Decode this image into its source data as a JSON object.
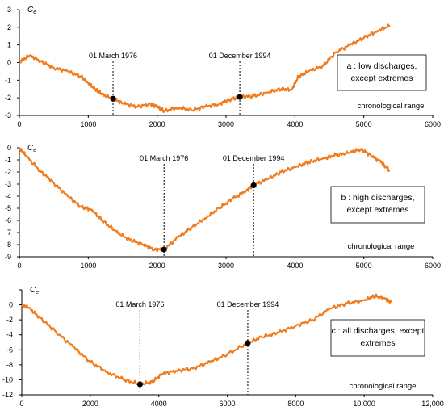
{
  "colors": {
    "series": "#f07c1e",
    "axis": "#000000",
    "marker": "#000000"
  },
  "chart_data": [
    {
      "type": "line",
      "id": "a",
      "ylabel": "C",
      "ylabel_sub": "e",
      "xlabel": "chronological range",
      "legend": [
        "a : low discharges,",
        "except extremes"
      ],
      "xlim": [
        0,
        6000
      ],
      "ylim": [
        -3,
        3
      ],
      "xticks": [
        0,
        1000,
        2000,
        3000,
        4000,
        5000,
        6000
      ],
      "xtick_labels": [
        "0",
        "1000",
        "2000",
        "3000",
        "4000",
        "5000",
        "6000"
      ],
      "yticks": [
        -3,
        -2,
        -1,
        0,
        1,
        2,
        3
      ],
      "ytick_labels": [
        "-3",
        "-2",
        "-1",
        "0",
        "1",
        "2",
        "3"
      ],
      "series": [
        {
          "x": [
            0,
            150,
            300,
            500,
            700,
            900,
            1000,
            1100,
            1200,
            1360,
            1500,
            1700,
            1900,
            2000,
            2100,
            2300,
            2500,
            2700,
            2900,
            3050,
            3200,
            3400,
            3600,
            3800,
            3950,
            4050,
            4200,
            4400,
            4600,
            4800,
            5000,
            5200,
            5380
          ],
          "y": [
            0.05,
            0.4,
            0.1,
            -0.3,
            -0.5,
            -0.8,
            -1.15,
            -1.5,
            -1.8,
            -2.05,
            -2.3,
            -2.5,
            -2.35,
            -2.5,
            -2.75,
            -2.55,
            -2.7,
            -2.5,
            -2.35,
            -2.1,
            -1.95,
            -1.9,
            -1.7,
            -1.5,
            -1.55,
            -0.8,
            -0.5,
            -0.2,
            0.6,
            1.0,
            1.4,
            1.8,
            2.1
          ]
        }
      ],
      "markers": [
        {
          "x": 1360,
          "y": -2.05,
          "label": "01 March 1976"
        },
        {
          "x": 3200,
          "y": -1.95,
          "label": "01 December 1994"
        }
      ]
    },
    {
      "type": "line",
      "id": "b",
      "ylabel": "C",
      "ylabel_sub": "e",
      "xlabel": "chronological range",
      "legend": [
        "b : high discharges,",
        "except extremes"
      ],
      "xlim": [
        0,
        6000
      ],
      "ylim": [
        -9,
        0
      ],
      "xticks": [
        0,
        1000,
        2000,
        3000,
        4000,
        5000,
        6000
      ],
      "xtick_labels": [
        "0",
        "1000",
        "2000",
        "3000",
        "4000",
        "5000",
        "6000"
      ],
      "yticks": [
        -9,
        -8,
        -7,
        -6,
        -5,
        -4,
        -3,
        -2,
        -1,
        0
      ],
      "ytick_labels": [
        "-9",
        "-8",
        "-7",
        "-6",
        "-5",
        "-4",
        "-3",
        "-2",
        "-1",
        "0"
      ],
      "series": [
        {
          "x": [
            0,
            100,
            300,
            500,
            700,
            900,
            1050,
            1200,
            1400,
            1600,
            1800,
            1950,
            2100,
            2300,
            2500,
            2700,
            2900,
            3100,
            3300,
            3400,
            3600,
            3800,
            4000,
            4200,
            4400,
            4600,
            4800,
            4950,
            5100,
            5250,
            5380
          ],
          "y": [
            0,
            -0.7,
            -1.9,
            -2.9,
            -4.0,
            -4.9,
            -5.1,
            -6.0,
            -6.9,
            -7.6,
            -8.0,
            -8.4,
            -8.4,
            -7.4,
            -6.6,
            -5.8,
            -5.0,
            -4.2,
            -3.5,
            -3.1,
            -2.6,
            -2.0,
            -1.6,
            -1.2,
            -0.9,
            -0.6,
            -0.4,
            -0.1,
            -0.6,
            -1.2,
            -1.9
          ]
        }
      ],
      "markers": [
        {
          "x": 2100,
          "y": -8.4,
          "label": "01 March 1976"
        },
        {
          "x": 3400,
          "y": -3.1,
          "label": "01 December 1994"
        }
      ]
    },
    {
      "type": "line",
      "id": "c",
      "ylabel": "C",
      "ylabel_sub": "e",
      "xlabel": "chronological range",
      "legend": [
        "c : all discharges, except",
        "extremes"
      ],
      "xlim": [
        0,
        12000
      ],
      "ylim": [
        -12,
        2
      ],
      "xticks": [
        0,
        2000,
        4000,
        6000,
        8000,
        10000,
        12000
      ],
      "xtick_labels": [
        "0",
        "2000",
        "4000",
        "6000",
        "8000",
        "10,000",
        "12,000"
      ],
      "yticks": [
        -12,
        -10,
        -8,
        -6,
        -4,
        -2,
        0,
        2
      ],
      "ytick_labels": [
        "-12",
        "-10",
        "-8",
        "-6",
        "-4",
        "-2",
        "0",
        ""
      ],
      "series": [
        {
          "x": [
            0,
            200,
            500,
            1000,
            1500,
            2000,
            2500,
            3000,
            3450,
            3800,
            4100,
            4500,
            5000,
            5500,
            6000,
            6600,
            7000,
            7500,
            8000,
            8500,
            9000,
            9500,
            10000,
            10300,
            10600,
            10780
          ],
          "y": [
            0,
            -0.4,
            -1.6,
            -3.6,
            -5.6,
            -7.6,
            -9.0,
            -10.0,
            -10.6,
            -10.3,
            -9.2,
            -8.8,
            -8.5,
            -7.6,
            -6.6,
            -5.1,
            -4.3,
            -3.7,
            -2.8,
            -2.0,
            -0.5,
            0.2,
            0.6,
            1.2,
            0.9,
            0.3
          ]
        }
      ],
      "markers": [
        {
          "x": 3450,
          "y": -10.6,
          "label": "01 March 1976"
        },
        {
          "x": 6600,
          "y": -5.1,
          "label": "01 December 1994"
        }
      ]
    }
  ]
}
